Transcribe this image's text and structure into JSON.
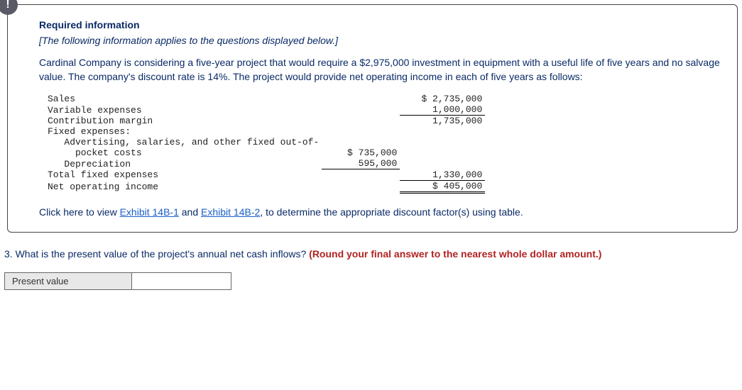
{
  "alert_glyph": "!",
  "heading": "Required information",
  "note": "[The following information applies to the questions displayed below.]",
  "intro": "Cardinal Company is considering a five-year project that would require a $2,975,000 investment in equipment with a useful life of five years and no salvage value. The company's discount rate is 14%. The project would provide net operating income in each of five years as follows:",
  "table": {
    "rows": {
      "sales_label": "Sales",
      "sales_val": "$ 2,735,000",
      "varexp_label": "Variable expenses",
      "varexp_val": "1,000,000",
      "contrib_label": "Contribution margin",
      "contrib_val": "1,735,000",
      "fixed_label": "Fixed expenses:",
      "adv_label": "   Advertising, salaries, and other fixed out-of-",
      "adv_label2": "     pocket costs",
      "adv_val": "$ 735,000",
      "dep_label": "   Depreciation",
      "dep_val": "595,000",
      "totfix_label": "Total fixed expenses",
      "totfix_val": "1,330,000",
      "noi_label": "Net operating income",
      "noi_val": "$ 405,000"
    }
  },
  "click_prefix": "Click here to view ",
  "link1": "Exhibit 14B-1",
  "click_mid": " and ",
  "link2": "Exhibit 14B-2",
  "click_suffix": ", to determine the appropriate discount factor(s) using table.",
  "question_num": "3. ",
  "question_text": "What is the present value of the project's annual net cash inflows? ",
  "question_hint": "(Round your final answer to the nearest whole dollar amount.)",
  "answer_label": "Present value",
  "answer_value": ""
}
